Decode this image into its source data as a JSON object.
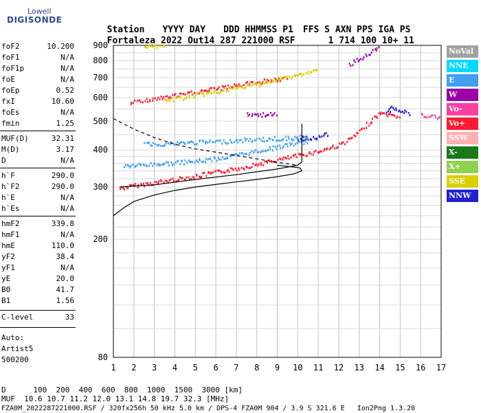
{
  "logo": {
    "brand": "Lowell",
    "product": "DIGISONDE"
  },
  "header": {
    "labels": [
      "Station",
      "YYYY",
      "DAY",
      "DDD",
      "HHMMSS",
      "P1",
      "FFS",
      "S",
      "AXN",
      "PPS",
      "IGA",
      "PS"
    ],
    "values": [
      "Fortaleza",
      "2022",
      "Out14",
      "287",
      "221000",
      "RSF",
      "",
      "1",
      "714",
      "100",
      "10+",
      "11"
    ]
  },
  "params": [
    {
      "key": "foF2",
      "value": "10.200"
    },
    {
      "key": "foF1",
      "value": "N/A"
    },
    {
      "key": "foF1p",
      "value": "N/A"
    },
    {
      "key": "foE",
      "value": "N/A"
    },
    {
      "key": "foEp",
      "value": "0.52"
    },
    {
      "key": "fxI",
      "value": "10.60"
    },
    {
      "key": "foEs",
      "value": "N/A"
    },
    {
      "key": "fmin",
      "value": "1.25"
    },
    {
      "key": "MUF(D)",
      "value": "32.31"
    },
    {
      "key": "M(D)",
      "value": "3.17"
    },
    {
      "key": "D",
      "value": "N/A"
    },
    {
      "key": "h`F",
      "value": "290.0"
    },
    {
      "key": "h`F2",
      "value": "290.0"
    },
    {
      "key": "h`E",
      "value": "N/A"
    },
    {
      "key": "h`Es",
      "value": "N/A"
    },
    {
      "key": "hmF2",
      "value": "339.8"
    },
    {
      "key": "hmF1",
      "value": "N/A"
    },
    {
      "key": "hmE",
      "value": "110.0"
    },
    {
      "key": "yF2",
      "value": "38.4"
    },
    {
      "key": "yF1",
      "value": "N/A"
    },
    {
      "key": "yE",
      "value": "20.0"
    },
    {
      "key": "B0",
      "value": "41.7"
    },
    {
      "key": "B1",
      "value": "1.56"
    },
    {
      "key": "C-level",
      "value": "33"
    }
  ],
  "auto": {
    "line1": "Auto:",
    "line2": "Artist5",
    "line3": "500200"
  },
  "legend": [
    {
      "label": "NoVal",
      "color": "#a0a0a0"
    },
    {
      "label": "NNE",
      "color": "#00d8ff"
    },
    {
      "label": "E",
      "color": "#3fa0f0"
    },
    {
      "label": "W",
      "color": "#9b00a8"
    },
    {
      "label": "Vo-",
      "color": "#ff3fa0"
    },
    {
      "label": "Vo+",
      "color": "#ff1a30"
    },
    {
      "label": "SSW",
      "color": "#ffb0b0"
    },
    {
      "label": "X-",
      "color": "#1a7a1a"
    },
    {
      "label": "X+",
      "color": "#8fd050"
    },
    {
      "label": "SSE",
      "color": "#d8d000"
    },
    {
      "label": "NNW",
      "color": "#2020d0"
    }
  ],
  "chart_data": {
    "type": "scatter",
    "xlabel": "",
    "ylabel": "",
    "xlim": [
      1,
      17
    ],
    "ylim": [
      80,
      900
    ],
    "y_scale": "log",
    "x_ticks": [
      1,
      2,
      3,
      4,
      5,
      6,
      7,
      8,
      9,
      10,
      11,
      12,
      13,
      14,
      15,
      16,
      17
    ],
    "y_ticks": [
      80,
      200,
      300,
      400,
      500,
      600,
      700,
      800,
      900
    ],
    "series": [
      {
        "color": "#ff1a30",
        "points": [
          [
            1.3,
            298
          ],
          [
            2,
            305
          ],
          [
            3,
            312
          ],
          [
            4,
            320
          ],
          [
            5,
            328
          ],
          [
            6,
            338
          ],
          [
            7,
            348
          ],
          [
            8,
            360
          ],
          [
            9,
            372
          ],
          [
            10,
            385
          ],
          [
            11,
            398
          ],
          [
            12,
            418
          ],
          [
            12.5,
            435
          ],
          [
            13,
            462
          ],
          [
            13.5,
            500
          ],
          [
            14,
            535
          ],
          [
            15,
            520
          ]
        ]
      },
      {
        "color": "#3fa0f0",
        "points": [
          [
            1.5,
            355
          ],
          [
            2.5,
            358
          ],
          [
            3.5,
            362
          ],
          [
            4.5,
            366
          ],
          [
            5.5,
            372
          ],
          [
            6.5,
            380
          ],
          [
            7.5,
            392
          ],
          [
            8.5,
            405
          ],
          [
            9.5,
            418
          ],
          [
            10.5,
            430
          ]
        ]
      },
      {
        "color": "#3fa0f0",
        "points": [
          [
            2.5,
            420
          ],
          [
            3.5,
            422
          ],
          [
            4.5,
            425
          ],
          [
            5.5,
            428
          ],
          [
            6.5,
            430
          ],
          [
            7.5,
            434
          ],
          [
            8.5,
            437
          ],
          [
            9.5,
            440
          ],
          [
            10.5,
            445
          ]
        ]
      },
      {
        "color": "#2020d0",
        "points": [
          [
            10,
            437
          ],
          [
            10.5,
            440
          ],
          [
            11,
            445
          ],
          [
            11.5,
            455
          ]
        ]
      },
      {
        "color": "#ff1a30",
        "points": [
          [
            1.8,
            580
          ],
          [
            2.5,
            590
          ],
          [
            3.5,
            605
          ],
          [
            4.5,
            620
          ],
          [
            5.5,
            638
          ],
          [
            6.5,
            655
          ],
          [
            7.5,
            672
          ],
          [
            8.5,
            690
          ],
          [
            9.5,
            700
          ]
        ]
      },
      {
        "color": "#d8d000",
        "points": [
          [
            3.5,
            590
          ],
          [
            4.5,
            605
          ],
          [
            5.5,
            622
          ],
          [
            6.5,
            640
          ],
          [
            7.5,
            660
          ],
          [
            8.5,
            680
          ],
          [
            10,
            720
          ],
          [
            11,
            745
          ]
        ]
      },
      {
        "color": "#9b00a8",
        "points": [
          [
            12.5,
            780
          ],
          [
            13,
            815
          ],
          [
            13.5,
            850
          ],
          [
            14,
            890
          ]
        ]
      },
      {
        "color": "#d8d000",
        "points": [
          [
            2.5,
            890
          ],
          [
            3,
            895
          ],
          [
            3.5,
            900
          ]
        ]
      },
      {
        "color": "#2020d0",
        "points": [
          [
            14.3,
            540
          ],
          [
            14.6,
            560
          ],
          [
            15,
            545
          ],
          [
            15.5,
            530
          ]
        ]
      },
      {
        "color": "#9b00a8",
        "points": [
          [
            7.5,
            530
          ],
          [
            8,
            528
          ],
          [
            8.5,
            530
          ],
          [
            9,
            528
          ]
        ]
      },
      {
        "color": "#ff3fa0",
        "points": [
          [
            16,
            525
          ],
          [
            16.5,
            520
          ],
          [
            17,
            518
          ]
        ]
      }
    ],
    "lines": [
      {
        "name": "profile",
        "style": "solid",
        "points": [
          [
            1,
            240
          ],
          [
            1.5,
            255
          ],
          [
            2,
            268
          ],
          [
            3,
            282
          ],
          [
            4,
            292
          ],
          [
            5,
            300
          ],
          [
            6,
            306
          ],
          [
            7,
            312
          ],
          [
            8,
            318
          ],
          [
            9,
            325
          ],
          [
            9.8,
            332
          ],
          [
            10.2,
            340
          ],
          [
            10.1,
            348
          ],
          [
            9.5,
            352
          ],
          [
            9,
            355
          ]
        ]
      },
      {
        "name": "profile-trace",
        "style": "solid",
        "points": [
          [
            1.3,
            300
          ],
          [
            3,
            305
          ],
          [
            5,
            318
          ],
          [
            7,
            330
          ],
          [
            9,
            345
          ],
          [
            10,
            355
          ],
          [
            10.2,
            365
          ],
          [
            10.2,
            490
          ]
        ]
      },
      {
        "name": "dashed",
        "style": "dashed",
        "points": [
          [
            1,
            510
          ],
          [
            2,
            470
          ],
          [
            3,
            440
          ],
          [
            4,
            418
          ],
          [
            5,
            403
          ],
          [
            6,
            393
          ],
          [
            7,
            383
          ],
          [
            8,
            373
          ],
          [
            9,
            363
          ],
          [
            10,
            355
          ]
        ]
      }
    ]
  },
  "footer": {
    "line1": "D      100  200  400  600  800  1000  1500  3000 [km]",
    "line2": "MUF  10.6 10.7 11.2 12.0 13.1 14.8 19.7 32.3 [MHz]",
    "line3": "FZA0M_2022287221000.RSF / 320fx256h 50 kHz 5.0 km / DPS-4 FZA0M 904 / 3.9 S 321.6 E   Ion2Png 1.3.20"
  }
}
